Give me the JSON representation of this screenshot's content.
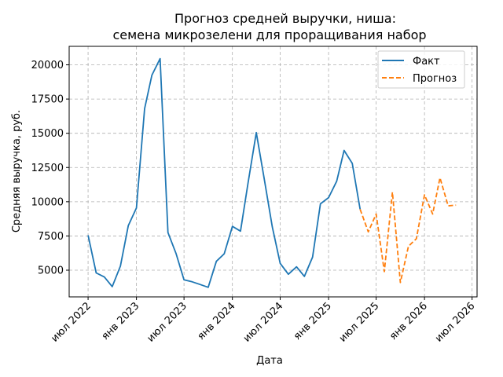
{
  "chart_data": {
    "type": "line",
    "title_line1": "Прогноз средней выручки, ниша:",
    "title_line2": "семена микрозелени для проращивания набор",
    "xlabel": "Дата",
    "ylabel": "Средняя выручка, руб.",
    "ylim": [
      3050,
      21350
    ],
    "yticks": [
      5000,
      7500,
      10000,
      12500,
      15000,
      17500,
      20000
    ],
    "ytick_labels": [
      "5000",
      "7500",
      "10000",
      "12500",
      "15000",
      "17500",
      "20000"
    ],
    "xticks": [
      "2022-07-01",
      "2023-01-01",
      "2023-07-01",
      "2024-01-01",
      "2024-07-01",
      "2025-01-01",
      "2025-07-01",
      "2026-01-01",
      "2026-07-01"
    ],
    "xtick_labels": [
      "июл 2022",
      "янв 2023",
      "июл 2023",
      "янв 2024",
      "июл 2024",
      "янв 2025",
      "июл 2025",
      "янв 2026",
      "июл 2026"
    ],
    "xlim": [
      "2022-04-20",
      "2026-07-20"
    ],
    "grid": true,
    "legend_position": "top-right",
    "series": [
      {
        "name": "Факт",
        "color": "#1f77b4",
        "style": "solid",
        "x": [
          "2022-07-01",
          "2022-08-01",
          "2022-09-01",
          "2022-10-01",
          "2022-11-01",
          "2022-12-01",
          "2023-01-01",
          "2023-02-01",
          "2023-03-01",
          "2023-04-01",
          "2023-05-01",
          "2023-06-01",
          "2023-07-01",
          "2023-08-01",
          "2023-09-01",
          "2023-10-01",
          "2023-11-01",
          "2023-12-01",
          "2024-01-01",
          "2024-02-01",
          "2024-03-01",
          "2024-04-01",
          "2024-05-01",
          "2024-06-01",
          "2024-07-01",
          "2024-08-01",
          "2024-09-01",
          "2024-10-01",
          "2024-11-01",
          "2024-12-01",
          "2025-01-01",
          "2025-02-01",
          "2025-03-01",
          "2025-04-01",
          "2025-05-01"
        ],
        "values": [
          7550,
          4800,
          4500,
          3800,
          5300,
          8250,
          9550,
          16800,
          19250,
          20450,
          7750,
          6200,
          4300,
          4150,
          3950,
          3750,
          5650,
          6200,
          8200,
          7850,
          11400,
          15050,
          11700,
          8150,
          5500,
          4700,
          5250,
          4550,
          5950,
          9850,
          10300,
          11500,
          13750,
          12800,
          9450
        ]
      },
      {
        "name": "Прогноз",
        "color": "#ff7f0e",
        "style": "dashed",
        "x": [
          "2025-05-01",
          "2025-06-01",
          "2025-07-01",
          "2025-08-01",
          "2025-09-01",
          "2025-10-01",
          "2025-11-01",
          "2025-12-01",
          "2026-01-01",
          "2026-02-01",
          "2026-03-01",
          "2026-04-01",
          "2026-05-01"
        ],
        "values": [
          9450,
          7800,
          9100,
          4900,
          10700,
          4100,
          6750,
          7300,
          10500,
          9100,
          11750,
          9700,
          9750
        ]
      }
    ]
  }
}
